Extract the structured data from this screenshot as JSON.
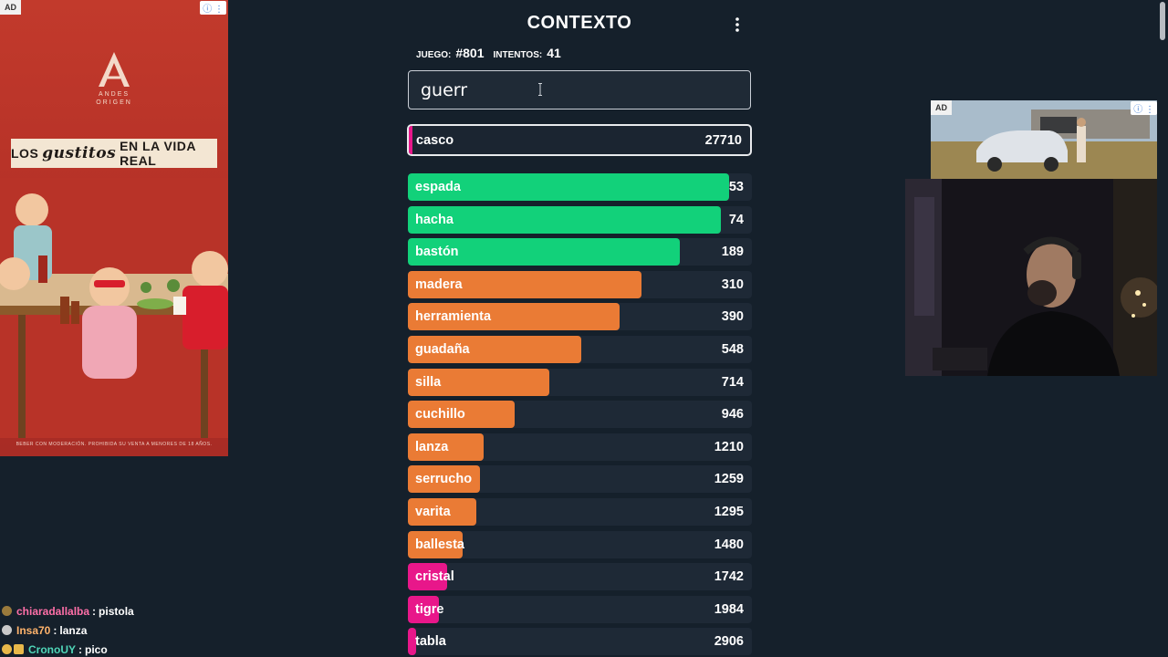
{
  "ad_left": {
    "tag": "AD",
    "info": "ⓘ ⋮",
    "brand": "ANDES",
    "brand_sub": "ORIGEN",
    "slogan_pre": "LOS",
    "slogan_script": "gustitos",
    "slogan_post": "EN LA VIDA REAL",
    "footer": "BEBER CON MODERACIÓN. PROHIBIDA SU VENTA A MENORES DE 18 AÑOS."
  },
  "ad_right": {
    "tag": "AD",
    "info": "ⓘ ⋮"
  },
  "game": {
    "title": "CONTEXTO",
    "menu_icon": "more-vertical-icon",
    "game_label": "JUEGO:",
    "game_number": "#801",
    "attempts_label": "INTENTOS:",
    "attempts_value": "41",
    "input_value": "guerr",
    "last_guess": {
      "word": "casco",
      "distance": "27710"
    },
    "guesses": [
      {
        "word": "espada",
        "distance": "53",
        "fill": 0.935,
        "color": "#12d17a"
      },
      {
        "word": "hacha",
        "distance": "74",
        "fill": 0.91,
        "color": "#12d17a"
      },
      {
        "word": "bastón",
        "distance": "189",
        "fill": 0.79,
        "color": "#12d17a"
      },
      {
        "word": "madera",
        "distance": "310",
        "fill": 0.68,
        "color": "#ea7b35"
      },
      {
        "word": "herramienta",
        "distance": "390",
        "fill": 0.615,
        "color": "#ea7b35"
      },
      {
        "word": "guadaña",
        "distance": "548",
        "fill": 0.505,
        "color": "#ea7b35"
      },
      {
        "word": "silla",
        "distance": "714",
        "fill": 0.41,
        "color": "#ea7b35"
      },
      {
        "word": "cuchillo",
        "distance": "946",
        "fill": 0.31,
        "color": "#ea7b35"
      },
      {
        "word": "lanza",
        "distance": "1210",
        "fill": 0.22,
        "color": "#ea7b35"
      },
      {
        "word": "serrucho",
        "distance": "1259",
        "fill": 0.21,
        "color": "#ea7b35"
      },
      {
        "word": "varita",
        "distance": "1295",
        "fill": 0.2,
        "color": "#ea7b35"
      },
      {
        "word": "ballesta",
        "distance": "1480",
        "fill": 0.16,
        "color": "#ea7b35"
      },
      {
        "word": "cristal",
        "distance": "1742",
        "fill": 0.115,
        "color": "#e8178a"
      },
      {
        "word": "tigre",
        "distance": "1984",
        "fill": 0.09,
        "color": "#e8178a"
      },
      {
        "word": "tabla",
        "distance": "2906",
        "fill": 0.025,
        "color": "#e8178a"
      }
    ]
  },
  "chat": [
    {
      "user": "chiaradallalba",
      "message": "pistola",
      "color": "#ff6fa8",
      "badge": "#9a7a3c",
      "extra_badge": false
    },
    {
      "user": "Insa70",
      "message": "lanza",
      "color": "#ffb36b",
      "badge": "#c9c9c9",
      "extra_badge": false
    },
    {
      "user": "CronoUY",
      "message": "pico",
      "color": "#4fd6b8",
      "badge": "#e8b84a",
      "extra_badge": true
    }
  ],
  "colors": {
    "background": "#15202b",
    "green": "#12d17a",
    "orange": "#ea7b35",
    "pink": "#e8178a"
  }
}
